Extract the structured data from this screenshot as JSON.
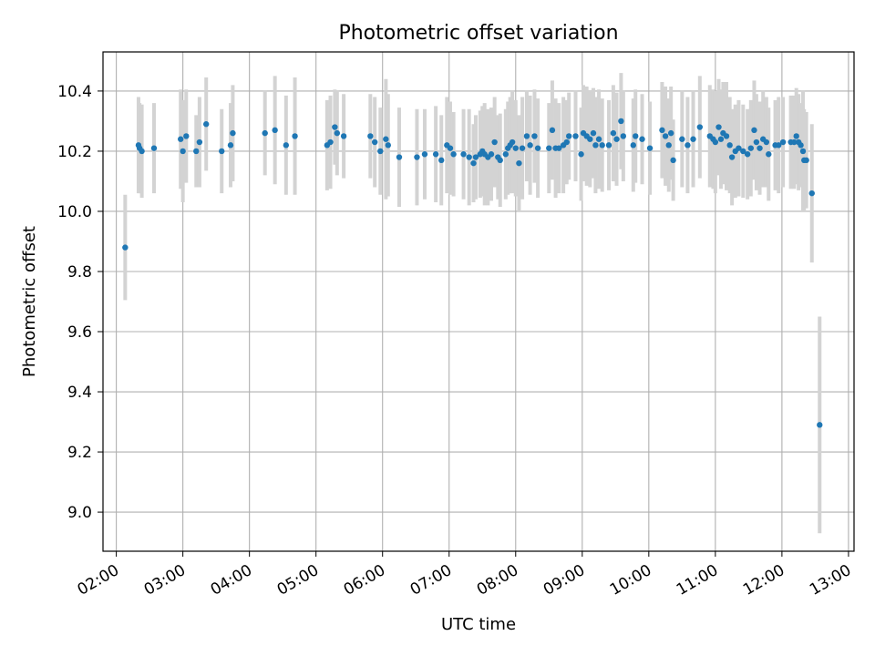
{
  "chart_data": {
    "type": "scatter",
    "title": "Photometric offset variation",
    "xlabel": "UTC time",
    "ylabel": "Photometric offset",
    "xlim": [
      "01:48",
      "13:05"
    ],
    "ylim": [
      8.87,
      10.53
    ],
    "grid": true,
    "x_ticks": [
      "02:00",
      "03:00",
      "04:00",
      "05:00",
      "06:00",
      "07:00",
      "08:00",
      "09:00",
      "10:00",
      "11:00",
      "12:00",
      "13:00"
    ],
    "y_ticks": [
      "9.0",
      "9.2",
      "9.4",
      "9.6",
      "9.8",
      "10.0",
      "10.2",
      "10.4"
    ],
    "colors": {
      "points": "#1f77b4",
      "errorbars": "#d3d3d3",
      "grid": "#b0b0b0"
    },
    "series": [
      {
        "points": [
          {
            "x": "02:08",
            "y": 9.88,
            "err": 0.175
          },
          {
            "x": "02:20",
            "y": 10.22,
            "err": 0.16
          },
          {
            "x": "02:21",
            "y": 10.21,
            "err": 0.15
          },
          {
            "x": "02:23",
            "y": 10.2,
            "err": 0.155
          },
          {
            "x": "02:34",
            "y": 10.21,
            "err": 0.15
          },
          {
            "x": "02:58",
            "y": 10.24,
            "err": 0.165
          },
          {
            "x": "03:00",
            "y": 10.2,
            "err": 0.17
          },
          {
            "x": "03:03",
            "y": 10.25,
            "err": 0.155
          },
          {
            "x": "03:12",
            "y": 10.2,
            "err": 0.12
          },
          {
            "x": "03:15",
            "y": 10.23,
            "err": 0.15
          },
          {
            "x": "03:21",
            "y": 10.29,
            "err": 0.155
          },
          {
            "x": "03:35",
            "y": 10.2,
            "err": 0.14
          },
          {
            "x": "03:43",
            "y": 10.22,
            "err": 0.14
          },
          {
            "x": "03:45",
            "y": 10.26,
            "err": 0.16
          },
          {
            "x": "04:14",
            "y": 10.26,
            "err": 0.14
          },
          {
            "x": "04:23",
            "y": 10.27,
            "err": 0.18
          },
          {
            "x": "04:33",
            "y": 10.22,
            "err": 0.165
          },
          {
            "x": "04:41",
            "y": 10.25,
            "err": 0.195
          },
          {
            "x": "05:10",
            "y": 10.22,
            "err": 0.15
          },
          {
            "x": "05:13",
            "y": 10.23,
            "err": 0.155
          },
          {
            "x": "05:17",
            "y": 10.28,
            "err": 0.125
          },
          {
            "x": "05:19",
            "y": 10.26,
            "err": 0.14
          },
          {
            "x": "05:25",
            "y": 10.25,
            "err": 0.14
          },
          {
            "x": "05:49",
            "y": 10.25,
            "err": 0.14
          },
          {
            "x": "05:53",
            "y": 10.23,
            "err": 0.15
          },
          {
            "x": "05:58",
            "y": 10.2,
            "err": 0.145
          },
          {
            "x": "06:03",
            "y": 10.24,
            "err": 0.2
          },
          {
            "x": "06:05",
            "y": 10.22,
            "err": 0.17
          },
          {
            "x": "06:15",
            "y": 10.18,
            "err": 0.165
          },
          {
            "x": "06:31",
            "y": 10.18,
            "err": 0.16
          },
          {
            "x": "06:38",
            "y": 10.19,
            "err": 0.15
          },
          {
            "x": "06:48",
            "y": 10.19,
            "err": 0.16
          },
          {
            "x": "06:53",
            "y": 10.17,
            "err": 0.15
          },
          {
            "x": "06:58",
            "y": 10.22,
            "err": 0.16
          },
          {
            "x": "07:01",
            "y": 10.21,
            "err": 0.155
          },
          {
            "x": "07:04",
            "y": 10.19,
            "err": 0.14
          },
          {
            "x": "07:13",
            "y": 10.19,
            "err": 0.15
          },
          {
            "x": "07:18",
            "y": 10.18,
            "err": 0.16
          },
          {
            "x": "07:22",
            "y": 10.16,
            "err": 0.13
          },
          {
            "x": "07:24",
            "y": 10.18,
            "err": 0.14
          },
          {
            "x": "07:28",
            "y": 10.19,
            "err": 0.145
          },
          {
            "x": "07:30",
            "y": 10.2,
            "err": 0.15
          },
          {
            "x": "07:32",
            "y": 10.19,
            "err": 0.17
          },
          {
            "x": "07:35",
            "y": 10.18,
            "err": 0.16
          },
          {
            "x": "07:38",
            "y": 10.19,
            "err": 0.155
          },
          {
            "x": "07:41",
            "y": 10.23,
            "err": 0.15
          },
          {
            "x": "07:44",
            "y": 10.18,
            "err": 0.14
          },
          {
            "x": "07:46",
            "y": 10.17,
            "err": 0.155
          },
          {
            "x": "07:51",
            "y": 10.19,
            "err": 0.15
          },
          {
            "x": "07:53",
            "y": 10.21,
            "err": 0.155
          },
          {
            "x": "07:55",
            "y": 10.22,
            "err": 0.16
          },
          {
            "x": "07:57",
            "y": 10.23,
            "err": 0.17
          },
          {
            "x": "08:00",
            "y": 10.21,
            "err": 0.16
          },
          {
            "x": "08:03",
            "y": 10.16,
            "err": 0.16
          },
          {
            "x": "08:06",
            "y": 10.21,
            "err": 0.17
          },
          {
            "x": "08:10",
            "y": 10.25,
            "err": 0.15
          },
          {
            "x": "08:13",
            "y": 10.22,
            "err": 0.165
          },
          {
            "x": "08:17",
            "y": 10.25,
            "err": 0.155
          },
          {
            "x": "08:20",
            "y": 10.21,
            "err": 0.165
          },
          {
            "x": "08:30",
            "y": 10.21,
            "err": 0.15
          },
          {
            "x": "08:33",
            "y": 10.27,
            "err": 0.165
          },
          {
            "x": "08:36",
            "y": 10.21,
            "err": 0.165
          },
          {
            "x": "08:39",
            "y": 10.21,
            "err": 0.15
          },
          {
            "x": "08:43",
            "y": 10.22,
            "err": 0.16
          },
          {
            "x": "08:46",
            "y": 10.23,
            "err": 0.14
          },
          {
            "x": "08:48",
            "y": 10.25,
            "err": 0.145
          },
          {
            "x": "08:54",
            "y": 10.25,
            "err": 0.15
          },
          {
            "x": "08:59",
            "y": 10.19,
            "err": 0.155
          },
          {
            "x": "09:01",
            "y": 10.26,
            "err": 0.16
          },
          {
            "x": "09:04",
            "y": 10.25,
            "err": 0.165
          },
          {
            "x": "09:07",
            "y": 10.24,
            "err": 0.16
          },
          {
            "x": "09:10",
            "y": 10.26,
            "err": 0.15
          },
          {
            "x": "09:12",
            "y": 10.22,
            "err": 0.16
          },
          {
            "x": "09:15",
            "y": 10.24,
            "err": 0.165
          },
          {
            "x": "09:18",
            "y": 10.22,
            "err": 0.155
          },
          {
            "x": "09:24",
            "y": 10.22,
            "err": 0.15
          },
          {
            "x": "09:28",
            "y": 10.26,
            "err": 0.16
          },
          {
            "x": "09:31",
            "y": 10.24,
            "err": 0.155
          },
          {
            "x": "09:35",
            "y": 10.3,
            "err": 0.16
          },
          {
            "x": "09:37",
            "y": 10.25,
            "err": 0.15
          },
          {
            "x": "09:46",
            "y": 10.22,
            "err": 0.155
          },
          {
            "x": "09:48",
            "y": 10.25,
            "err": 0.155
          },
          {
            "x": "09:54",
            "y": 10.24,
            "err": 0.15
          },
          {
            "x": "10:01",
            "y": 10.21,
            "err": 0.155
          },
          {
            "x": "10:12",
            "y": 10.27,
            "err": 0.16
          },
          {
            "x": "10:15",
            "y": 10.25,
            "err": 0.165
          },
          {
            "x": "10:18",
            "y": 10.22,
            "err": 0.155
          },
          {
            "x": "10:20",
            "y": 10.26,
            "err": 0.155
          },
          {
            "x": "10:22",
            "y": 10.17,
            "err": 0.135
          },
          {
            "x": "10:30",
            "y": 10.24,
            "err": 0.16
          },
          {
            "x": "10:35",
            "y": 10.22,
            "err": 0.16
          },
          {
            "x": "10:40",
            "y": 10.24,
            "err": 0.16
          },
          {
            "x": "10:46",
            "y": 10.28,
            "err": 0.17
          },
          {
            "x": "10:55",
            "y": 10.25,
            "err": 0.17
          },
          {
            "x": "10:58",
            "y": 10.24,
            "err": 0.165
          },
          {
            "x": "11:00",
            "y": 10.23,
            "err": 0.17
          },
          {
            "x": "11:03",
            "y": 10.28,
            "err": 0.16
          },
          {
            "x": "11:05",
            "y": 10.24,
            "err": 0.165
          },
          {
            "x": "11:07",
            "y": 10.26,
            "err": 0.17
          },
          {
            "x": "11:10",
            "y": 10.25,
            "err": 0.18
          },
          {
            "x": "11:13",
            "y": 10.22,
            "err": 0.16
          },
          {
            "x": "11:15",
            "y": 10.18,
            "err": 0.16
          },
          {
            "x": "11:18",
            "y": 10.2,
            "err": 0.155
          },
          {
            "x": "11:21",
            "y": 10.21,
            "err": 0.16
          },
          {
            "x": "11:25",
            "y": 10.2,
            "err": 0.155
          },
          {
            "x": "11:29",
            "y": 10.19,
            "err": 0.15
          },
          {
            "x": "11:32",
            "y": 10.21,
            "err": 0.16
          },
          {
            "x": "11:35",
            "y": 10.27,
            "err": 0.165
          },
          {
            "x": "11:37",
            "y": 10.23,
            "err": 0.16
          },
          {
            "x": "11:40",
            "y": 10.21,
            "err": 0.155
          },
          {
            "x": "11:43",
            "y": 10.24,
            "err": 0.16
          },
          {
            "x": "11:46",
            "y": 10.23,
            "err": 0.15
          },
          {
            "x": "11:48",
            "y": 10.19,
            "err": 0.155
          },
          {
            "x": "11:54",
            "y": 10.22,
            "err": 0.15
          },
          {
            "x": "11:57",
            "y": 10.22,
            "err": 0.16
          },
          {
            "x": "12:01",
            "y": 10.23,
            "err": 0.15
          },
          {
            "x": "12:08",
            "y": 10.23,
            "err": 0.155
          },
          {
            "x": "12:11",
            "y": 10.23,
            "err": 0.155
          },
          {
            "x": "12:13",
            "y": 10.25,
            "err": 0.16
          },
          {
            "x": "12:15",
            "y": 10.23,
            "err": 0.16
          },
          {
            "x": "12:17",
            "y": 10.22,
            "err": 0.14
          },
          {
            "x": "12:19",
            "y": 10.2,
            "err": 0.2
          },
          {
            "x": "12:20",
            "y": 10.17,
            "err": 0.17
          },
          {
            "x": "12:22",
            "y": 10.17,
            "err": 0.16
          },
          {
            "x": "12:27",
            "y": 10.06,
            "err": 0.23
          },
          {
            "x": "12:34",
            "y": 9.29,
            "err": 0.36
          }
        ]
      }
    ]
  }
}
